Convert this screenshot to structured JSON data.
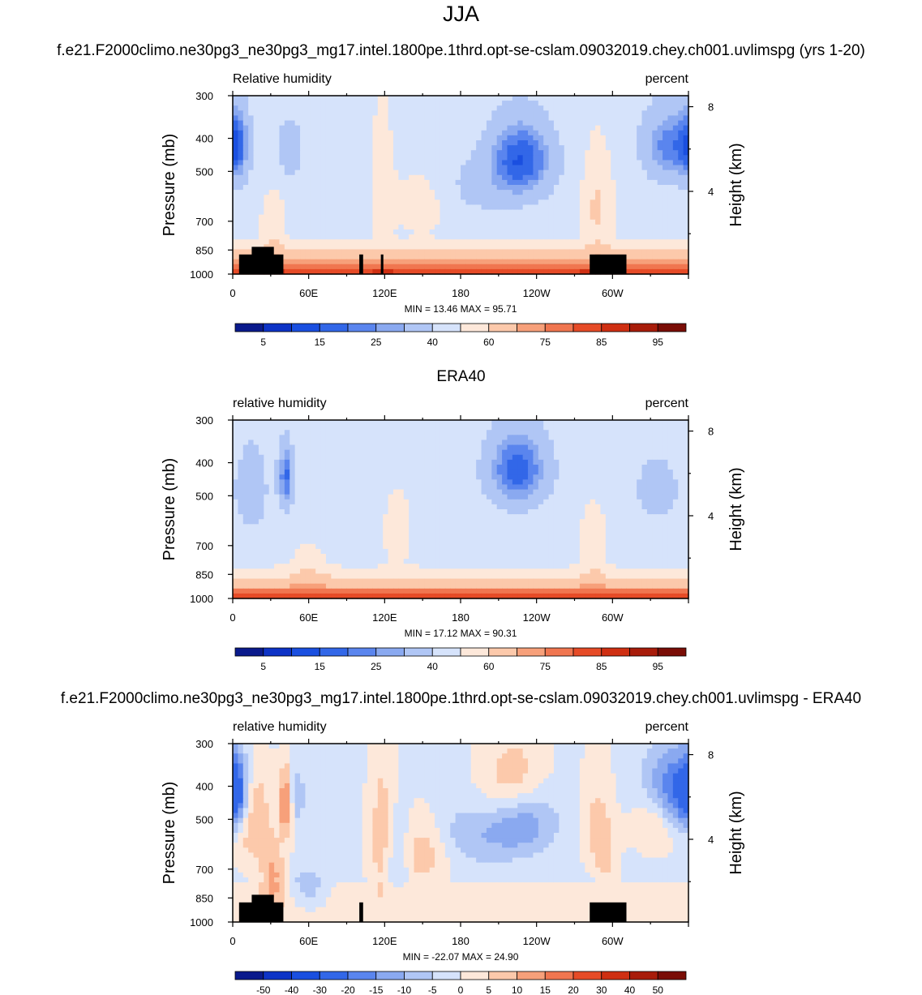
{
  "figure": {
    "season_title": "JJA",
    "model_title": "f.e21.F2000climo.ne30pg3_ne30pg3_mg17.intel.1800pe.1thrd.opt-se-cslam.09032019.chey.ch001.uvlimspg (yrs 1-20)",
    "obs_title": "ERA40",
    "diff_title": "f.e21.F2000climo.ne30pg3_ne30pg3_mg17.intel.1800pe.1thrd.opt-se-cslam.09032019.chey.ch001.uvlimspg - ERA40"
  },
  "chart_data": [
    {
      "type": "heatmap",
      "id": "model",
      "left_label": "Relative humidity",
      "right_label": "percent",
      "xlabel": "",
      "ylabel": "Pressure (mb)",
      "y2label": "Height (km)",
      "x_ticks": [
        "0",
        "60E",
        "120E",
        "180",
        "120W",
        "60W"
      ],
      "x_tick_values": [
        0,
        60,
        120,
        180,
        240,
        300
      ],
      "xlim": [
        0,
        360
      ],
      "y_ticks": [
        "300",
        "400",
        "500",
        "700",
        "850",
        "1000"
      ],
      "y_tick_values": [
        300,
        400,
        500,
        700,
        850,
        1000
      ],
      "ylim": [
        1000,
        300
      ],
      "y2_ticks": [
        "8",
        "4"
      ],
      "y2_tick_values": [
        8,
        4
      ],
      "stats": "MIN =  13.46  MAX =  95.71",
      "min": 13.46,
      "max": 95.71,
      "colorbar_labels": [
        "5",
        "15",
        "25",
        "40",
        "60",
        "75",
        "85",
        "95"
      ],
      "colors": [
        "#0a1a8c",
        "#0d33c6",
        "#1a4fe0",
        "#3267e8",
        "#5a85ee",
        "#8aa9f0",
        "#b0c6f5",
        "#d6e3fb",
        "#fde8da",
        "#fcc9ab",
        "#f7a07a",
        "#f07650",
        "#e64b27",
        "#cf2f12",
        "#a81c0a",
        "#7a0d06"
      ],
      "colorbar_mode": "seq",
      "field": "model"
    },
    {
      "type": "heatmap",
      "id": "era40",
      "left_label": "relative humidity",
      "right_label": "percent",
      "xlabel": "",
      "ylabel": "Pressure (mb)",
      "y2label": "Height (km)",
      "x_ticks": [
        "0",
        "60E",
        "120E",
        "180",
        "120W",
        "60W"
      ],
      "x_tick_values": [
        0,
        60,
        120,
        180,
        240,
        300
      ],
      "xlim": [
        0,
        360
      ],
      "y_ticks": [
        "300",
        "400",
        "500",
        "700",
        "850",
        "1000"
      ],
      "y_tick_values": [
        300,
        400,
        500,
        700,
        850,
        1000
      ],
      "ylim": [
        1000,
        300
      ],
      "y2_ticks": [
        "8",
        "4"
      ],
      "y2_tick_values": [
        8,
        4
      ],
      "stats": "MIN =  17.12  MAX =  90.31",
      "min": 17.12,
      "max": 90.31,
      "colorbar_labels": [
        "5",
        "15",
        "25",
        "40",
        "60",
        "75",
        "85",
        "95"
      ],
      "colors": [
        "#0a1a8c",
        "#0d33c6",
        "#1a4fe0",
        "#3267e8",
        "#5a85ee",
        "#8aa9f0",
        "#b0c6f5",
        "#d6e3fb",
        "#fde8da",
        "#fcc9ab",
        "#f7a07a",
        "#f07650",
        "#e64b27",
        "#cf2f12",
        "#a81c0a",
        "#7a0d06"
      ],
      "colorbar_mode": "seq",
      "field": "era"
    },
    {
      "type": "heatmap",
      "id": "difference",
      "left_label": "relative humidity",
      "right_label": "percent",
      "xlabel": "",
      "ylabel": "Pressure (mb)",
      "y2label": "Height (km)",
      "x_ticks": [
        "0",
        "60E",
        "120E",
        "180",
        "120W",
        "60W"
      ],
      "x_tick_values": [
        0,
        60,
        120,
        180,
        240,
        300
      ],
      "xlim": [
        0,
        360
      ],
      "y_ticks": [
        "300",
        "400",
        "500",
        "700",
        "850",
        "1000"
      ],
      "y_tick_values": [
        300,
        400,
        500,
        700,
        850,
        1000
      ],
      "ylim": [
        1000,
        300
      ],
      "y2_ticks": [
        "8",
        "4"
      ],
      "y2_tick_values": [
        8,
        4
      ],
      "stats": "MIN = -22.07  MAX =  24.90",
      "min": -22.07,
      "max": 24.9,
      "colorbar_labels": [
        "-50",
        "-40",
        "-30",
        "-20",
        "-15",
        "-10",
        "-5",
        "0",
        "5",
        "10",
        "15",
        "20",
        "30",
        "40",
        "50"
      ],
      "colors": [
        "#0a1a8c",
        "#0d33c6",
        "#1a4fe0",
        "#3267e8",
        "#5a85ee",
        "#8aa9f0",
        "#b0c6f5",
        "#d6e3fb",
        "#fde8da",
        "#fcc9ab",
        "#f7a07a",
        "#f07650",
        "#e64b27",
        "#cf2f12",
        "#a81c0a",
        "#7a0d06"
      ],
      "colorbar_mode": "div",
      "field": "diff"
    }
  ]
}
